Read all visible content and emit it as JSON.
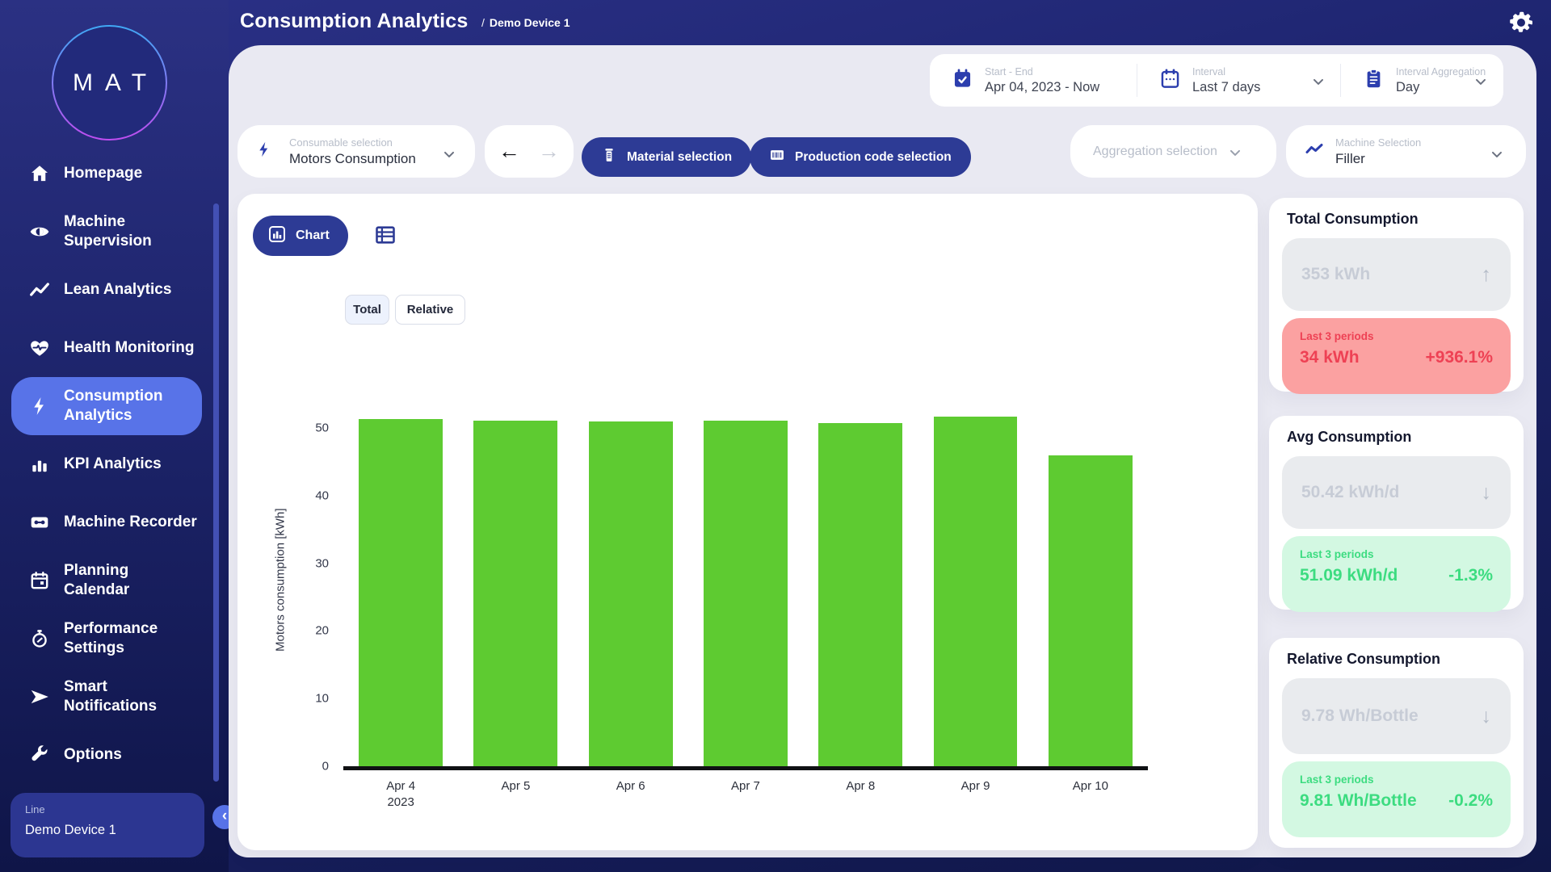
{
  "header": {
    "title": "Consumption Analytics",
    "breadcrumb_sep": "/",
    "breadcrumb": "Demo Device 1"
  },
  "sidebar": {
    "logo_text": "MAT",
    "items": [
      {
        "label": "Homepage",
        "icon": "home-icon",
        "active": false
      },
      {
        "label": "Machine\nSupervision",
        "icon": "eye-icon",
        "active": false
      },
      {
        "label": "Lean Analytics",
        "icon": "trend-line-icon",
        "active": false
      },
      {
        "label": "Health Monitoring",
        "icon": "heart-pulse-icon",
        "active": false
      },
      {
        "label": "Consumption\nAnalytics",
        "icon": "lightning-icon",
        "active": true
      },
      {
        "label": "KPI Analytics",
        "icon": "bar-chart-icon",
        "active": false
      },
      {
        "label": "Machine Recorder",
        "icon": "cassette-icon",
        "active": false
      },
      {
        "label": "Planning\nCalendar",
        "icon": "calendar-icon",
        "active": false
      },
      {
        "label": "Performance\nSettings",
        "icon": "stopwatch-icon",
        "active": false
      },
      {
        "label": "Smart\nNotifications",
        "icon": "send-icon",
        "active": false
      },
      {
        "label": "Options",
        "icon": "wrench-icon",
        "active": false
      }
    ],
    "device_card": {
      "label": "Line",
      "value": "Demo Device 1"
    },
    "collapse_glyph": "‹"
  },
  "filters": {
    "start_end": {
      "label": "Start - End",
      "value": "Apr 04, 2023 - Now",
      "icon": "calendar-check-icon"
    },
    "interval": {
      "label": "Interval",
      "value": "Last 7 days",
      "icon": "calendar-dots-icon"
    },
    "interval_aggregation": {
      "label": "Interval Aggregation",
      "value": "Day",
      "icon": "clipboard-icon"
    },
    "consumable": {
      "label": "Consumable selection",
      "value": "Motors Consumption",
      "icon": "lightning-icon"
    },
    "back_glyph": "←",
    "forward_glyph": "→",
    "material_button_label": "Material selection",
    "production_button_label": "Production code selection",
    "aggregation_placeholder": "Aggregation selection",
    "machine": {
      "label": "Machine Selection",
      "value": "Filler",
      "icon": "trend-line-icon"
    }
  },
  "view_controls": {
    "chart_button_label": "Chart",
    "toggles": [
      {
        "label": "Total",
        "active": true
      },
      {
        "label": "Relative",
        "active": false
      }
    ]
  },
  "chart_data": {
    "type": "bar",
    "categories": [
      "Apr 4\n2023",
      "Apr 5",
      "Apr 6",
      "Apr 7",
      "Apr 8",
      "Apr 9",
      "Apr 10"
    ],
    "values": [
      51.3,
      51.1,
      50.9,
      51.1,
      50.7,
      51.7,
      45.9
    ],
    "title": "",
    "xlabel": "",
    "ylabel": "Motors consumption [kWh]",
    "yticks": [
      0,
      10,
      20,
      30,
      40,
      50
    ],
    "ylim": [
      0,
      55
    ],
    "bar_color": "#5ecb31",
    "grid": false,
    "legend": false
  },
  "stats": [
    {
      "title": "Total Consumption",
      "current": {
        "value": "353 kWh",
        "trend": "up",
        "arrow": "↑"
      },
      "last": {
        "label": "Last 3 periods",
        "value": "34 kWh",
        "delta": "+936.1%",
        "sentiment": "negative"
      }
    },
    {
      "title": "Avg Consumption",
      "current": {
        "value": "50.42 kWh/d",
        "trend": "down",
        "arrow": "↓"
      },
      "last": {
        "label": "Last 3 periods",
        "value": "51.09 kWh/d",
        "delta": "-1.3%",
        "sentiment": "positive"
      }
    },
    {
      "title": "Relative Consumption",
      "current": {
        "value": "9.78 Wh/Bottle",
        "trend": "down",
        "arrow": "↓"
      },
      "last": {
        "label": "Last 3 periods",
        "value": "9.81 Wh/Bottle",
        "delta": "-0.2%",
        "sentiment": "positive"
      }
    }
  ],
  "colors": {
    "accent": "#5873e8",
    "button_navy": "#2d3b95",
    "bar_green": "#5ecb31",
    "negative_text": "#ee4154",
    "negative_bg": "#fba1a1",
    "positive_text": "#3cdc80",
    "positive_bg": "#d3f8e2"
  }
}
